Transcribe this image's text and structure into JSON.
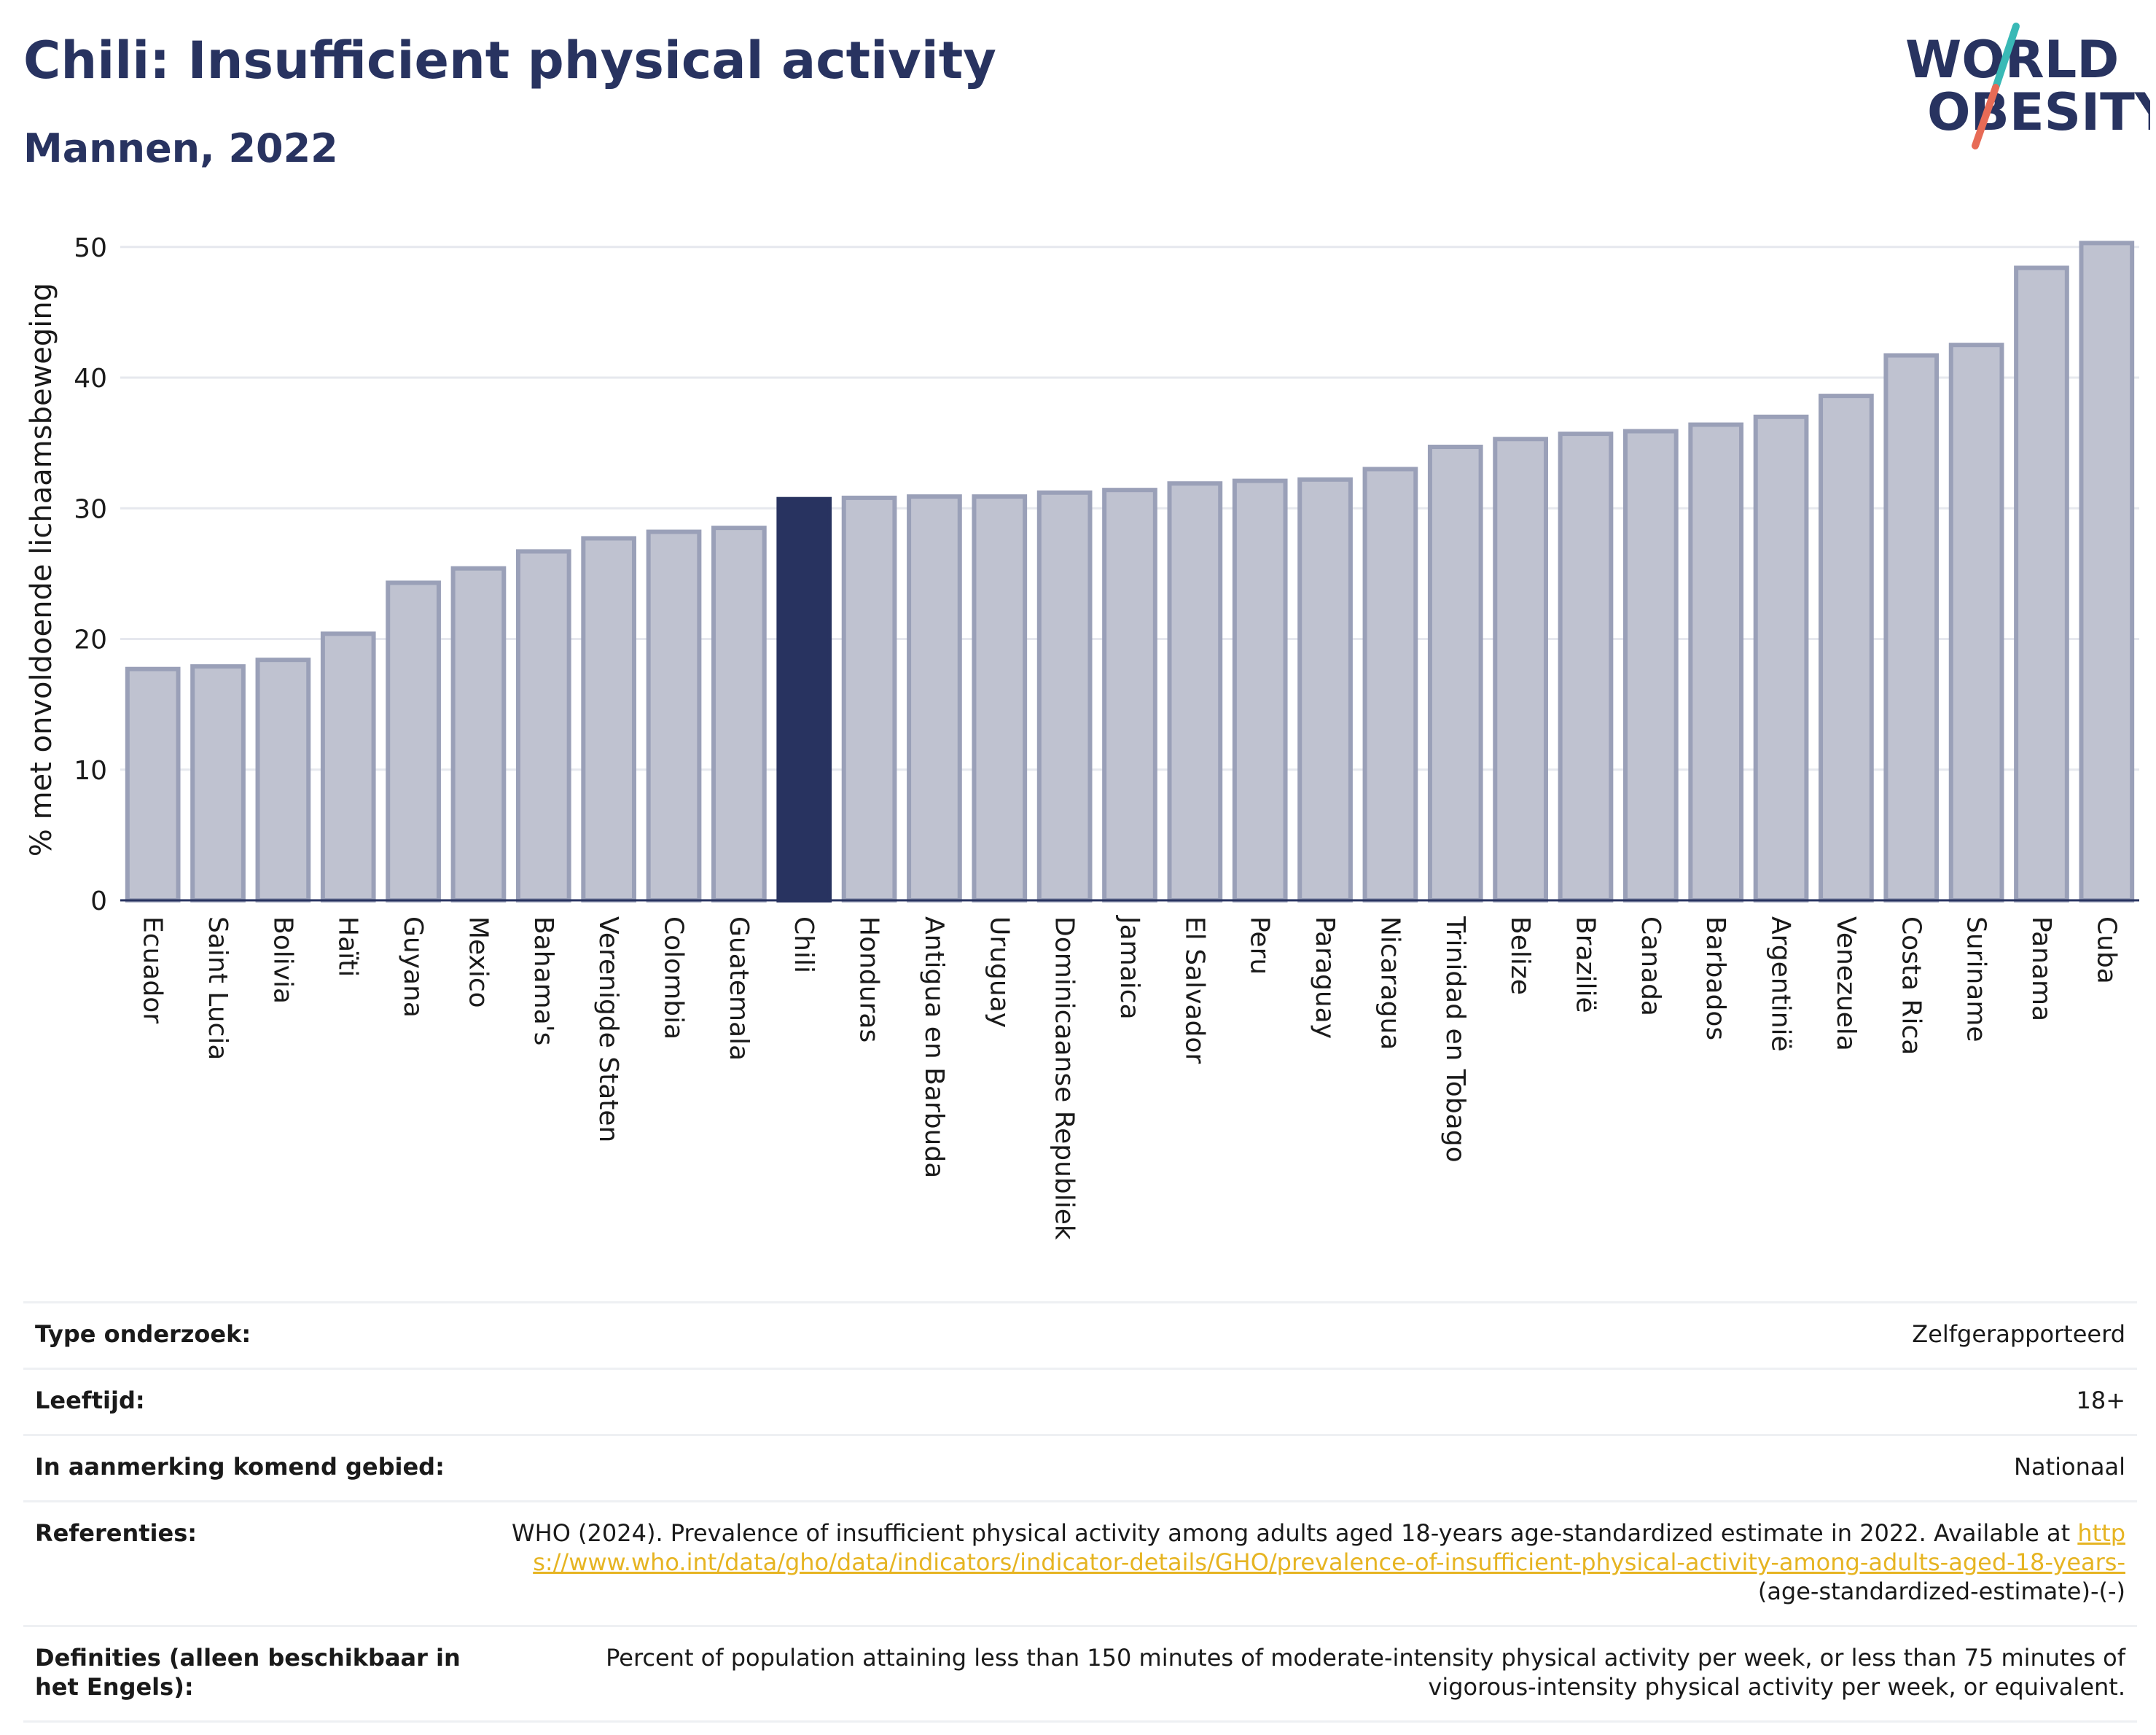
{
  "title": "Chili: Insufficient physical activity",
  "subtitle": "Mannen, 2022",
  "logo": {
    "line1": "WORLD",
    "line2": "OBESITY"
  },
  "colors": {
    "highlight": "#283360",
    "bar_fill": "#bfc2d0",
    "bar_stroke": "#9aa0b8",
    "grid": "#e6e8ee",
    "text": "#283360",
    "link": "#e6b422",
    "logo_teal": "#39b9b6",
    "logo_coral": "#e76b56"
  },
  "chart_data": {
    "type": "bar",
    "ylabel": "% met onvoldoende lichaamsbeweging",
    "xlabel": "",
    "ylim": [
      0,
      50
    ],
    "yticks": [
      0,
      10,
      20,
      30,
      40,
      50
    ],
    "grid": true,
    "highlight": "Chili",
    "categories": [
      "Ecuador",
      "Saint Lucia",
      "Bolivia",
      "Haïti",
      "Guyana",
      "Mexico",
      "Bahama's",
      "Verenigde Staten",
      "Colombia",
      "Guatemala",
      "Chili",
      "Honduras",
      "Antigua en Barbuda",
      "Uruguay",
      "Dominicaanse Republiek",
      "Jamaica",
      "El Salvador",
      "Peru",
      "Paraguay",
      "Nicaragua",
      "Trinidad en Tobago",
      "Belize",
      "Brazilië",
      "Canada",
      "Barbados",
      "Argentinië",
      "Venezuela",
      "Costa Rica",
      "Suriname",
      "Panama",
      "Cuba"
    ],
    "values": [
      17.7,
      17.9,
      18.4,
      20.4,
      24.3,
      25.4,
      26.7,
      27.7,
      28.2,
      28.5,
      30.7,
      30.8,
      30.9,
      30.9,
      31.2,
      31.4,
      31.9,
      32.1,
      32.2,
      33.0,
      34.7,
      35.3,
      35.7,
      35.9,
      36.4,
      37.0,
      38.6,
      41.7,
      42.5,
      48.4,
      50.3
    ]
  },
  "meta": {
    "rows": [
      {
        "key": "Type onderzoek:",
        "value": "Zelfgerapporteerd"
      },
      {
        "key": "Leeftijd:",
        "value": "18+"
      },
      {
        "key": "In aanmerking komend gebied:",
        "value": "Nationaal"
      }
    ],
    "references": {
      "key": "Referenties:",
      "text": "WHO (2024). Prevalence of insufficient physical activity among adults aged 18-years age-standardized estimate in 2022. Available at",
      "link": "https://www.who.int/data/gho/data/indicators/indicator-details/GHO/prevalence-of-insufficient-physical-activity-among-adults-aged-18-years-",
      "suffix": "(age-standardized-estimate)-(-)"
    },
    "definitions": {
      "key": "Definities (alleen beschikbaar in het Engels):",
      "value": "Percent of population attaining less than 150 minutes of moderate-intensity physical activity per week, or less than 75 minutes of vigorous-intensity physical activity per week, or equivalent."
    }
  }
}
